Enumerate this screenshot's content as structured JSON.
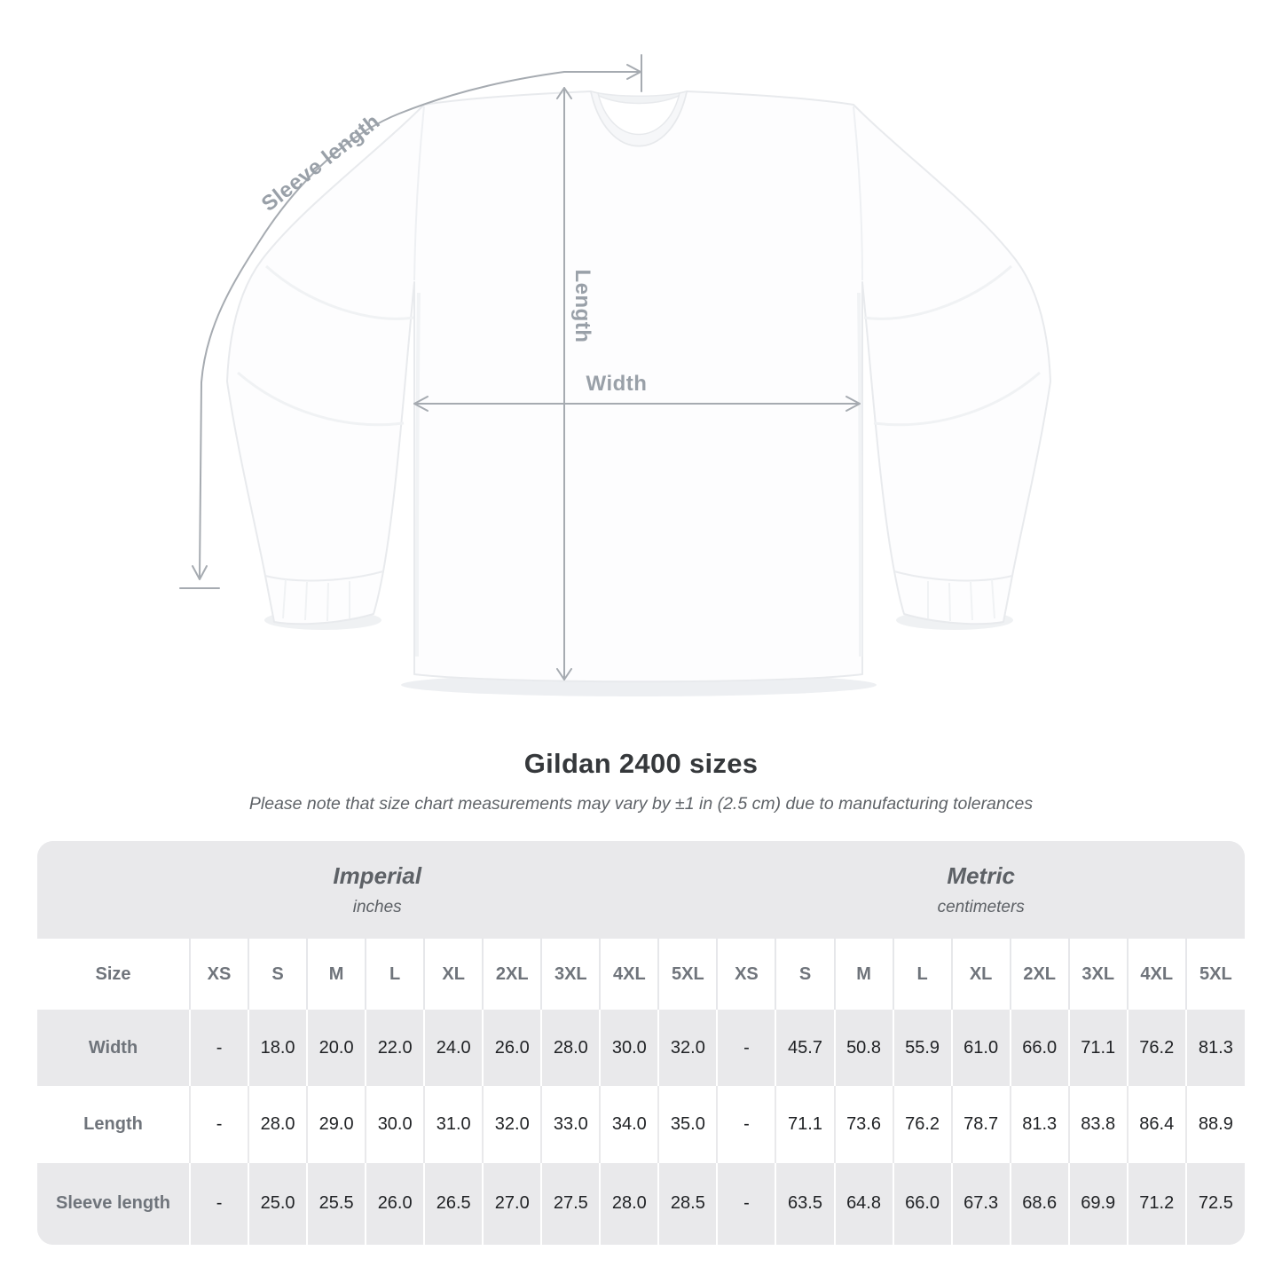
{
  "diagram": {
    "labels": {
      "sleeve_length": "Sleeve length",
      "length": "Length",
      "width": "Width"
    }
  },
  "header": {
    "title": "Gildan 2400 sizes",
    "subtitle": "Please note that size chart measurements may vary by ±1 in (2.5 cm) due to manufacturing tolerances"
  },
  "size_chart": {
    "corner_label": "Size",
    "unit_groups": [
      {
        "label": "Imperial",
        "sublabel": "inches"
      },
      {
        "label": "Metric",
        "sublabel": "centimeters"
      }
    ],
    "sizes": [
      "XS",
      "S",
      "M",
      "L",
      "XL",
      "2XL",
      "3XL",
      "4XL",
      "5XL"
    ],
    "rows": [
      {
        "label": "Width",
        "imperial": [
          "-",
          "18.0",
          "20.0",
          "22.0",
          "24.0",
          "26.0",
          "28.0",
          "30.0",
          "32.0"
        ],
        "metric": [
          "-",
          "45.7",
          "50.8",
          "55.9",
          "61.0",
          "66.0",
          "71.1",
          "76.2",
          "81.3"
        ]
      },
      {
        "label": "Length",
        "imperial": [
          "-",
          "28.0",
          "29.0",
          "30.0",
          "31.0",
          "32.0",
          "33.0",
          "34.0",
          "35.0"
        ],
        "metric": [
          "-",
          "71.1",
          "73.6",
          "76.2",
          "78.7",
          "81.3",
          "83.8",
          "86.4",
          "88.9"
        ]
      },
      {
        "label": "Sleeve length",
        "imperial": [
          "-",
          "25.0",
          "25.5",
          "26.0",
          "26.5",
          "27.0",
          "27.5",
          "28.0",
          "28.5"
        ],
        "metric": [
          "-",
          "63.5",
          "64.8",
          "66.0",
          "67.3",
          "68.6",
          "69.9",
          "71.2",
          "72.5"
        ]
      }
    ]
  },
  "chart_data": {
    "type": "table",
    "title": "Gildan 2400 sizes",
    "note": "Please note that size chart measurements may vary by ±1 in (2.5 cm) due to manufacturing tolerances",
    "sizes": [
      "XS",
      "S",
      "M",
      "L",
      "XL",
      "2XL",
      "3XL",
      "4XL",
      "5XL"
    ],
    "measurements": [
      {
        "name": "Width",
        "inches": [
          null,
          18.0,
          20.0,
          22.0,
          24.0,
          26.0,
          28.0,
          30.0,
          32.0
        ],
        "centimeters": [
          null,
          45.7,
          50.8,
          55.9,
          61.0,
          66.0,
          71.1,
          76.2,
          81.3
        ]
      },
      {
        "name": "Length",
        "inches": [
          null,
          28.0,
          29.0,
          30.0,
          31.0,
          32.0,
          33.0,
          34.0,
          35.0
        ],
        "centimeters": [
          null,
          71.1,
          73.6,
          76.2,
          78.7,
          81.3,
          83.8,
          86.4,
          88.9
        ]
      },
      {
        "name": "Sleeve length",
        "inches": [
          null,
          25.0,
          25.5,
          26.0,
          26.5,
          27.0,
          27.5,
          28.0,
          28.5
        ],
        "centimeters": [
          null,
          63.5,
          64.8,
          66.0,
          67.3,
          68.6,
          69.9,
          71.2,
          72.5
        ]
      }
    ]
  },
  "colors": {
    "annotation_line": "#a6abb1",
    "annotation_label": "#99a0a8",
    "title_text": "#35383b",
    "subtitle_text": "#5f6368",
    "table_band_gray": "#e9e9eb",
    "table_header_text": "#6f747b",
    "table_value_text": "#1f2124"
  }
}
